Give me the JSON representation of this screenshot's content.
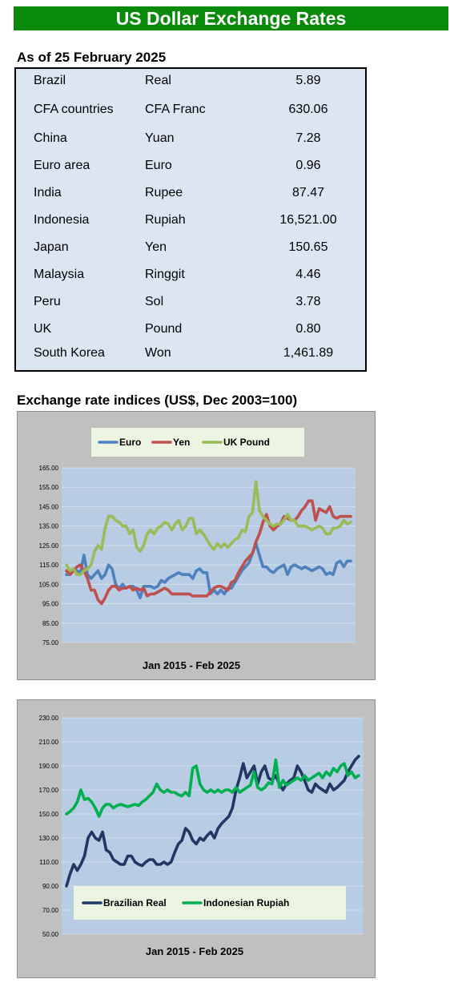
{
  "header": {
    "title": "US Dollar Exchange Rates"
  },
  "rates": {
    "as_of": "As of 25 February 2025",
    "rows": [
      {
        "country": "Brazil",
        "currency": "Real",
        "value": "5.89"
      },
      {
        "country": "CFA countries",
        "currency": "CFA Franc",
        "value": "630.06"
      },
      {
        "country": "China",
        "currency": "Yuan",
        "value": "7.28"
      },
      {
        "country": "Euro area",
        "currency": "Euro",
        "value": "0.96"
      },
      {
        "country": "India",
        "currency": "Rupee",
        "value": "87.47"
      },
      {
        "country": "Indonesia",
        "currency": "Rupiah",
        "value": "16,521.00"
      },
      {
        "country": "Japan",
        "currency": "Yen",
        "value": "150.65"
      },
      {
        "country": "Malaysia",
        "currency": "Ringgit",
        "value": "4.46"
      },
      {
        "country": "Peru",
        "currency": "Sol",
        "value": "3.78"
      },
      {
        "country": "UK",
        "currency": "Pound",
        "value": "0.80"
      },
      {
        "country": "South Korea",
        "currency": "Won",
        "value": "1,461.89"
      }
    ]
  },
  "indices": {
    "title": "Exchange rate indices (US$, Dec 2003=100)"
  },
  "chart_data": [
    {
      "type": "line",
      "xlabel": "Jan 2015 - Feb 2025",
      "ylim": [
        75,
        165
      ],
      "yticks": [
        "165.00",
        "155.00",
        "145.00",
        "135.00",
        "125.00",
        "115.00",
        "105.00",
        "95.00",
        "85.00",
        "75.00"
      ],
      "legend_position": "top",
      "grid": true,
      "colors": {
        "Euro": "#4f81bd",
        "Yen": "#c0504d",
        "UK Pound": "#9bbb59"
      },
      "x_start": "2015-01",
      "x_step": "quarterly",
      "series": [
        {
          "name": "Euro",
          "values": [
            110,
            110,
            112,
            112,
            111,
            120,
            110,
            108,
            110,
            112,
            108,
            110,
            115,
            113,
            105,
            103,
            105,
            103,
            104,
            104,
            102,
            98,
            104,
            104,
            104,
            103,
            104,
            107,
            106,
            108,
            109,
            110,
            111,
            110,
            110,
            110,
            108,
            112,
            113,
            111,
            111,
            100,
            102,
            100,
            102,
            100,
            103,
            103,
            106,
            109,
            112,
            114,
            116,
            121,
            126,
            120,
            114,
            114,
            112,
            111,
            113,
            114,
            115,
            110,
            114,
            115,
            114,
            113,
            114,
            113,
            112,
            113,
            114,
            113,
            110,
            111,
            110,
            116,
            117,
            114,
            117,
            117
          ]
        },
        {
          "name": "Yen",
          "values": [
            112,
            110,
            112,
            114,
            115,
            112,
            108,
            102,
            102,
            97,
            95,
            98,
            102,
            104,
            104,
            102,
            103,
            103,
            104,
            102,
            103,
            102,
            103,
            99,
            100,
            100,
            101,
            102,
            103,
            102,
            100,
            100,
            100,
            100,
            100,
            100,
            99,
            99,
            99,
            99,
            99,
            101,
            103,
            104,
            104,
            103,
            102,
            106,
            107,
            111,
            114,
            117,
            119,
            121,
            127,
            131,
            137,
            141,
            135,
            133,
            135,
            136,
            140,
            139,
            138,
            138,
            140,
            143,
            145,
            148,
            148,
            138,
            144,
            143,
            142,
            145,
            140,
            139,
            140,
            140,
            140,
            140
          ]
        },
        {
          "name": "UK Pound",
          "values": [
            115,
            112,
            113,
            110,
            110,
            112,
            113,
            115,
            122,
            125,
            123,
            134,
            140,
            140,
            138,
            137,
            135,
            135,
            131,
            133,
            124,
            122,
            125,
            131,
            133,
            131,
            134,
            135,
            137,
            136,
            133,
            136,
            138,
            133,
            135,
            139,
            139,
            131,
            133,
            131,
            128,
            125,
            123,
            126,
            124,
            126,
            124,
            126,
            128,
            129,
            133,
            132,
            140,
            142,
            158,
            143,
            140,
            138,
            136,
            135,
            136,
            136,
            138,
            141,
            138,
            138,
            135,
            135,
            135,
            134,
            133,
            134,
            135,
            134,
            131,
            131,
            134,
            134,
            135,
            138,
            136,
            137
          ]
        }
      ]
    },
    {
      "type": "line",
      "xlabel": "Jan 2015 - Feb  2025",
      "ylim": [
        50,
        230
      ],
      "yticks": [
        "230.00",
        "210.00",
        "190.00",
        "170.00",
        "150.00",
        "130.00",
        "110.00",
        "90.00",
        "70.00",
        "50.00"
      ],
      "legend_position": "bottom",
      "grid": true,
      "colors": {
        "Brazilian Real": "#1f3864",
        "Indonesian Rupiah": "#00b050"
      },
      "x_start": "2015-01",
      "x_step": "quarterly",
      "series": [
        {
          "name": "Brazilian Real",
          "values": [
            90,
            100,
            108,
            103,
            108,
            115,
            130,
            135,
            130,
            128,
            135,
            120,
            118,
            112,
            110,
            108,
            108,
            115,
            115,
            110,
            108,
            107,
            110,
            112,
            112,
            108,
            108,
            110,
            108,
            110,
            118,
            125,
            128,
            138,
            135,
            128,
            125,
            130,
            128,
            132,
            135,
            130,
            138,
            142,
            145,
            148,
            155,
            170,
            180,
            192,
            180,
            185,
            190,
            175,
            185,
            190,
            180,
            178,
            182,
            175,
            170,
            175,
            178,
            180,
            190,
            185,
            178,
            170,
            168,
            175,
            172,
            170,
            168,
            175,
            170,
            172,
            175,
            178,
            185,
            190,
            195,
            198
          ]
        },
        {
          "name": "Indonesian Rupiah",
          "values": [
            150,
            152,
            155,
            160,
            170,
            162,
            163,
            160,
            155,
            148,
            155,
            158,
            158,
            155,
            157,
            158,
            157,
            156,
            157,
            158,
            157,
            160,
            162,
            165,
            168,
            175,
            170,
            168,
            170,
            168,
            168,
            166,
            165,
            168,
            165,
            188,
            190,
            175,
            170,
            168,
            170,
            168,
            170,
            168,
            170,
            170,
            168,
            172,
            168,
            170,
            172,
            174,
            185,
            172,
            170,
            172,
            176,
            175,
            195,
            172,
            178,
            174,
            176,
            178,
            180,
            178,
            182,
            178,
            180,
            182,
            184,
            180,
            185,
            182,
            188,
            185,
            190,
            192,
            182,
            185,
            180,
            182
          ]
        }
      ]
    }
  ]
}
